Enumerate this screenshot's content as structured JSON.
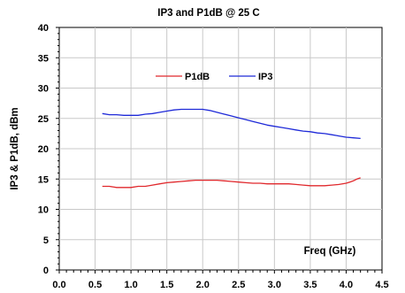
{
  "chart_data": {
    "type": "line",
    "title": "IP3 and P1dB @ 25 C",
    "xlabel": "Freq (GHz)",
    "ylabel": "IP3 & P1dB, dBm",
    "xlim": [
      0.0,
      4.5
    ],
    "ylim": [
      0,
      40
    ],
    "x_ticks": [
      "0.0",
      "0.5",
      "1.0",
      "1.5",
      "2.0",
      "2.5",
      "3.0",
      "3.5",
      "4.0",
      "4.5"
    ],
    "y_ticks": [
      "0",
      "5",
      "10",
      "15",
      "20",
      "25",
      "30",
      "35",
      "40"
    ],
    "grid": true,
    "legend_position": "top-center",
    "series": [
      {
        "name": "P1dB",
        "color": "#e0282c",
        "x": [
          0.6,
          0.7,
          0.8,
          0.9,
          1.0,
          1.1,
          1.2,
          1.3,
          1.4,
          1.5,
          1.6,
          1.7,
          1.8,
          1.9,
          2.0,
          2.1,
          2.2,
          2.3,
          2.4,
          2.5,
          2.6,
          2.7,
          2.8,
          2.9,
          3.0,
          3.1,
          3.2,
          3.3,
          3.4,
          3.5,
          3.6,
          3.7,
          3.8,
          3.9,
          4.0,
          4.05,
          4.1,
          4.15,
          4.2
        ],
        "y": [
          13.8,
          13.8,
          13.6,
          13.6,
          13.6,
          13.8,
          13.8,
          14.0,
          14.2,
          14.4,
          14.5,
          14.6,
          14.7,
          14.8,
          14.8,
          14.8,
          14.8,
          14.7,
          14.6,
          14.5,
          14.4,
          14.3,
          14.3,
          14.2,
          14.2,
          14.2,
          14.2,
          14.1,
          14.0,
          13.9,
          13.9,
          13.9,
          14.0,
          14.1,
          14.3,
          14.5,
          14.7,
          15.0,
          15.2
        ]
      },
      {
        "name": "IP3",
        "color": "#1f2ad8",
        "x": [
          0.6,
          0.7,
          0.8,
          0.9,
          1.0,
          1.1,
          1.2,
          1.3,
          1.4,
          1.5,
          1.6,
          1.7,
          1.8,
          1.9,
          2.0,
          2.1,
          2.2,
          2.3,
          2.4,
          2.5,
          2.6,
          2.7,
          2.8,
          2.9,
          3.0,
          3.1,
          3.2,
          3.3,
          3.4,
          3.5,
          3.6,
          3.7,
          3.8,
          3.9,
          4.0,
          4.1,
          4.2
        ],
        "y": [
          25.8,
          25.6,
          25.6,
          25.5,
          25.5,
          25.5,
          25.7,
          25.8,
          26.0,
          26.2,
          26.4,
          26.5,
          26.5,
          26.5,
          26.5,
          26.3,
          26.0,
          25.7,
          25.4,
          25.1,
          24.8,
          24.5,
          24.2,
          23.9,
          23.7,
          23.5,
          23.3,
          23.1,
          22.9,
          22.8,
          22.6,
          22.5,
          22.3,
          22.1,
          21.9,
          21.8,
          21.7
        ]
      }
    ]
  }
}
